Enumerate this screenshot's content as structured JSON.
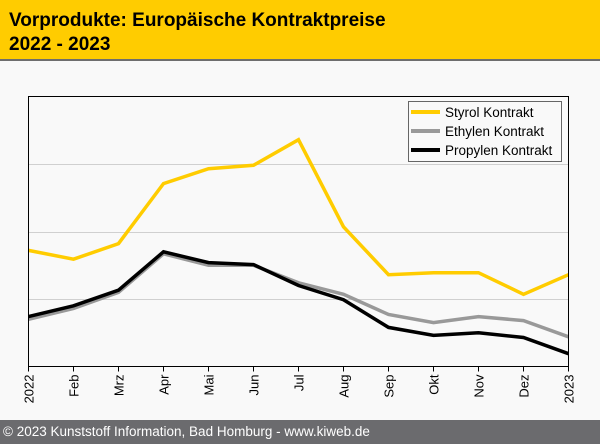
{
  "header": {
    "title_line1": "Vorprodukte: Europäische Kontraktpreise",
    "title_line2": "2022 - 2023"
  },
  "footer": {
    "text": "© 2023 Kunststoff Information, Bad Homburg - www.kiweb.de"
  },
  "colors": {
    "header_bg": "#ffcc00",
    "footer_bg": "#6b6b6e",
    "styrol": "#ffcc00",
    "ethylen": "#999999",
    "propylen": "#000000"
  },
  "chart_data": {
    "type": "line",
    "title": "Vorprodukte: Europäische Kontraktpreise 2022 - 2023",
    "xlabel": "",
    "ylabel": "",
    "categories": [
      "2022",
      "Feb",
      "Mrz",
      "Apr",
      "Mai",
      "Jun",
      "Jul",
      "Aug",
      "Sep",
      "Okt",
      "Nov",
      "Dez",
      "2023"
    ],
    "ylim": [
      0,
      4
    ],
    "yticks_labeled": false,
    "grid": true,
    "legend_position": "top-right",
    "series": [
      {
        "name": "Styrol Kontrakt",
        "color": "#ffcc00",
        "values": [
          1.72,
          1.59,
          1.82,
          2.71,
          2.93,
          2.98,
          3.36,
          2.07,
          1.36,
          1.39,
          1.39,
          1.07,
          1.36
        ]
      },
      {
        "name": "Ethylen Kontrakt",
        "color": "#999999",
        "values": [
          0.7,
          0.86,
          1.1,
          1.67,
          1.5,
          1.5,
          1.24,
          1.07,
          0.77,
          0.65,
          0.74,
          0.68,
          0.44
        ]
      },
      {
        "name": "Propylen Kontrakt",
        "color": "#000000",
        "values": [
          0.74,
          0.9,
          1.13,
          1.7,
          1.54,
          1.51,
          1.2,
          0.99,
          0.58,
          0.46,
          0.5,
          0.43,
          0.19
        ]
      }
    ]
  }
}
